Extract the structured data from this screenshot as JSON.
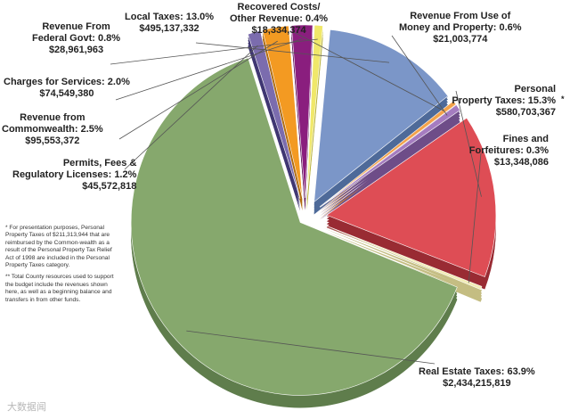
{
  "chart_data": {
    "type": "pie",
    "title": "",
    "slices": [
      {
        "label": "Real Estate Taxes",
        "percent": 63.9,
        "amount": "$2,434,215,819",
        "color": "#86a86d",
        "side": "#5f7d4c"
      },
      {
        "label": "Permits, Fees & Regulatory Licenses",
        "percent": 1.2,
        "amount": "$45,572,818",
        "color": "#7b6cae",
        "side": "#3f3672"
      },
      {
        "label": "Revenue from Commonwealth",
        "percent": 2.5,
        "amount": "$95,553,372",
        "color": "#f39a22",
        "side": "#b06b0e"
      },
      {
        "label": "Charges for Services",
        "percent": 2.0,
        "amount": "$74,549,380",
        "color": "#8a1e7e",
        "side": "#5c1054"
      },
      {
        "label": "Revenue From Federal Govt",
        "percent": 0.8,
        "amount": "$28,961,963",
        "color": "#f0e86a",
        "side": "#b9b33e"
      },
      {
        "label": "Local Taxes",
        "percent": 13.0,
        "amount": "$495,137,332",
        "color": "#7b96c8",
        "side": "#4e6a99"
      },
      {
        "label": "Recovered Costs/ Other Revenue",
        "percent": 0.4,
        "amount": "$18,334,374",
        "color": "#f3a24a",
        "side": "#b8762c"
      },
      {
        "label": "Revenue From Use of Money and Property",
        "percent": 0.6,
        "amount": "$21,003,774",
        "color": "#a57cc0",
        "side": "#6e4d88"
      },
      {
        "label": "Personal Property Taxes",
        "percent": 15.3,
        "amount": "$580,703,367",
        "color": "#de4d55",
        "side": "#992b33"
      },
      {
        "label": "Fines and Forfeitures",
        "percent": 0.3,
        "amount": "$13,348,086",
        "color": "#f2ecb6",
        "side": "#c4bd82"
      }
    ]
  },
  "labels": {
    "real_estate": [
      "Real Estate Taxes: 63.9%",
      "$2,434,215,819"
    ],
    "permits": [
      "Permits, Fees &",
      "Regulatory Licenses: 1.2%",
      "$45,572,818"
    ],
    "commonwealth": [
      "Revenue from",
      "Commonwealth: 2.5%",
      "$95,553,372"
    ],
    "charges": [
      "Charges for Services: 2.0%",
      "$74,549,380"
    ],
    "federal": [
      "Revenue From",
      "Federal Govt: 0.8%",
      "$28,961,963"
    ],
    "local": [
      "Local Taxes: 13.0%",
      "$495,137,332"
    ],
    "recovered": [
      "Recovered Costs/",
      "Other Revenue: 0.4%",
      "$18,334,374"
    ],
    "money": [
      "Revenue From Use of",
      "Money and Property: 0.6%",
      "$21,003,774"
    ],
    "personal": [
      "Personal",
      "Property Taxes: 15.3%",
      "$580,703,367"
    ],
    "personal_mark": "*",
    "fines": [
      "Fines and",
      "Forfeitures: 0.3%",
      "$13,348,086"
    ]
  },
  "notes": {
    "note1": "* For presentation purposes, Personal Property Taxes of $211,313,944 that are reimbursed by the Common-wealth as a result of the Personal Property Tax Relief Act of 1998 are included in the Personal Property Taxes category.",
    "note2": "** Total County resources used to support the budget include the revenues shown here, as well as a beginning balance and transfers in from other funds."
  },
  "watermark": "大数据闻"
}
